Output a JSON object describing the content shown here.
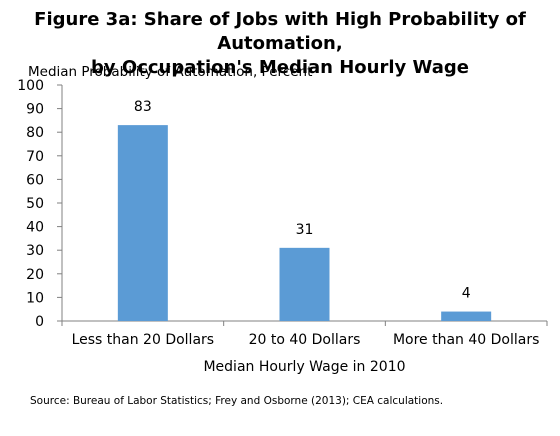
{
  "chart_data": {
    "type": "bar",
    "title_line1": "Figure 3a: Share of Jobs with High Probability of Automation,",
    "title_line2": "by Occupation's Median Hourly Wage",
    "ylabel": "Median Probability of Automation, Percent",
    "xlabel": "Median Hourly Wage in 2010",
    "categories": [
      "Less than 20 Dollars",
      "20 to 40 Dollars",
      "More than 40 Dollars"
    ],
    "values": [
      83,
      31,
      4
    ],
    "data_labels": [
      "83",
      "31",
      "4"
    ],
    "ylim": [
      0,
      100
    ],
    "yticks": [
      0,
      10,
      20,
      30,
      40,
      50,
      60,
      70,
      80,
      90,
      100
    ],
    "grid": false,
    "legend": "none",
    "bar_color": "#5b9bd5"
  },
  "source": "Source: Bureau of Labor Statistics; Frey and Osborne (2013); CEA calculations."
}
